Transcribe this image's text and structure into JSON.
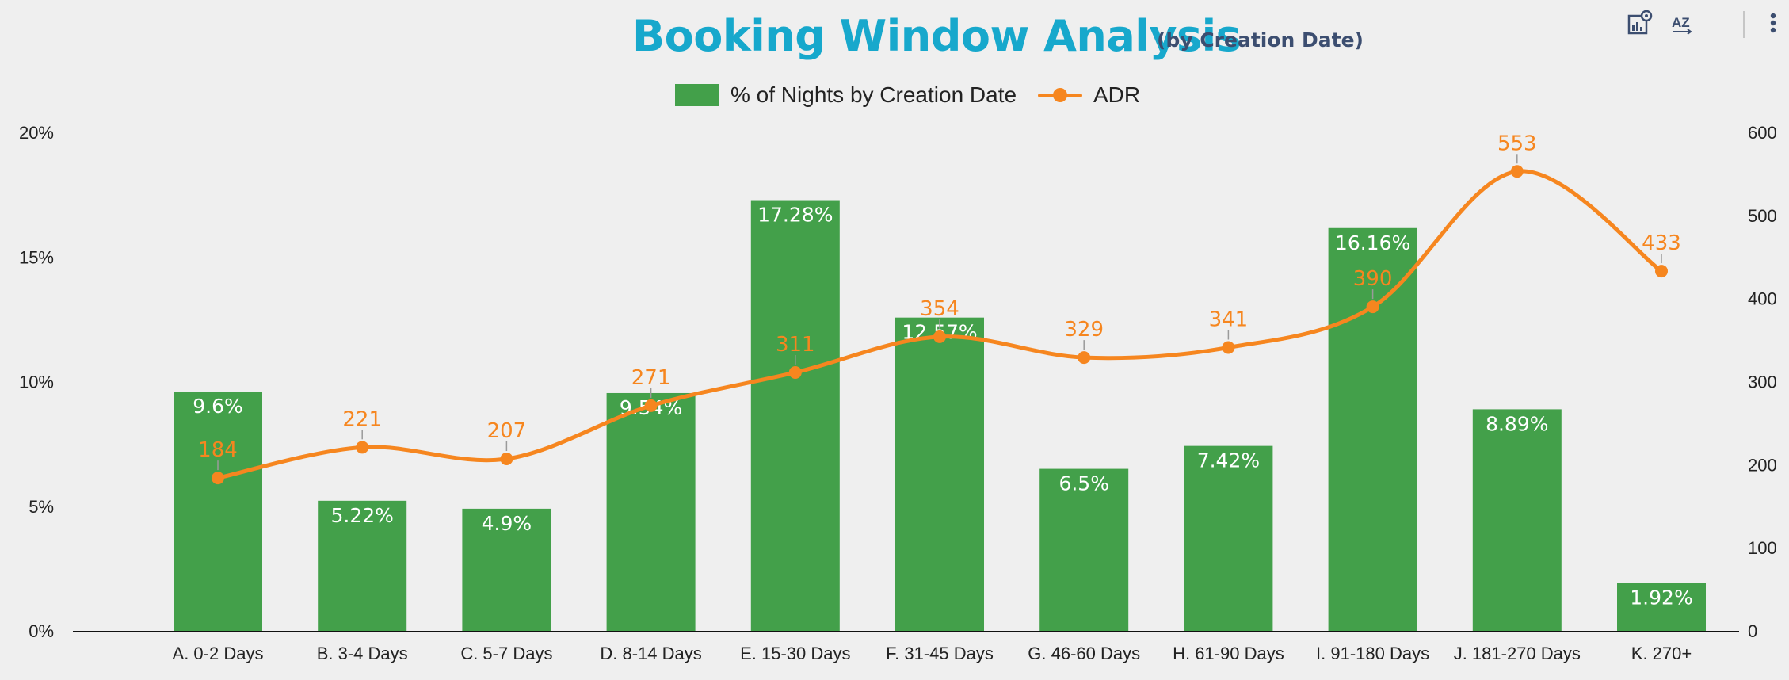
{
  "header": {
    "title": "Booking Window Analysis",
    "subtitle": "(by Creation Date)"
  },
  "toolbar": {
    "icons": [
      "chart-settings-icon",
      "sort-az-icon",
      "more-vert-icon"
    ],
    "sort_label": "AZ"
  },
  "colors": {
    "title": "#17a8cc",
    "subtitle": "#3c4e70",
    "bar": "#43a04a",
    "line": "#f6861f",
    "background": "#efefef"
  },
  "legend": {
    "bar_label": "% of Nights by Creation Date",
    "line_label": "ADR"
  },
  "chart_data": {
    "type": "bar",
    "title": "Booking Window Analysis",
    "subtitle": "(by Creation Date)",
    "categories": [
      "A. 0-2 Days",
      "B. 3-4 Days",
      "C. 5-7 Days",
      "D. 8-14 Days",
      "E. 15-30 Days",
      "F. 31-45 Days",
      "G. 46-60 Days",
      "H. 61-90 Days",
      "I. 91-180 Days",
      "J. 181-270 Days",
      "K. 270+"
    ],
    "series": [
      {
        "name": "% of Nights by Creation Date",
        "type": "bar",
        "axis": "left",
        "values": [
          9.6,
          5.22,
          4.9,
          9.54,
          17.28,
          12.57,
          6.5,
          7.42,
          16.16,
          8.89,
          1.92
        ],
        "labels": [
          "9.6%",
          "5.22%",
          "4.9%",
          "9.54%",
          "17.28%",
          "12.57%",
          "6.5%",
          "7.42%",
          "16.16%",
          "8.89%",
          "1.92%"
        ]
      },
      {
        "name": "ADR",
        "type": "line",
        "axis": "right",
        "values": [
          184,
          221,
          207,
          271,
          311,
          354,
          329,
          341,
          390,
          553,
          433
        ],
        "labels": [
          "184",
          "221",
          "207",
          "271",
          "311",
          "354",
          "329",
          "341",
          "390",
          "553",
          "433"
        ]
      }
    ],
    "y_left": {
      "ylim": [
        0,
        20
      ],
      "ticks": [
        0,
        5,
        10,
        15,
        20
      ],
      "tick_labels": [
        "0%",
        "5%",
        "10%",
        "15%",
        "20%"
      ]
    },
    "y_right": {
      "ylim": [
        0,
        600
      ],
      "ticks": [
        0,
        100,
        200,
        300,
        400,
        500,
        600
      ],
      "tick_labels": [
        "0",
        "100",
        "200",
        "300",
        "400",
        "500",
        "600"
      ]
    },
    "grid": false,
    "legend_position": "top-center"
  }
}
